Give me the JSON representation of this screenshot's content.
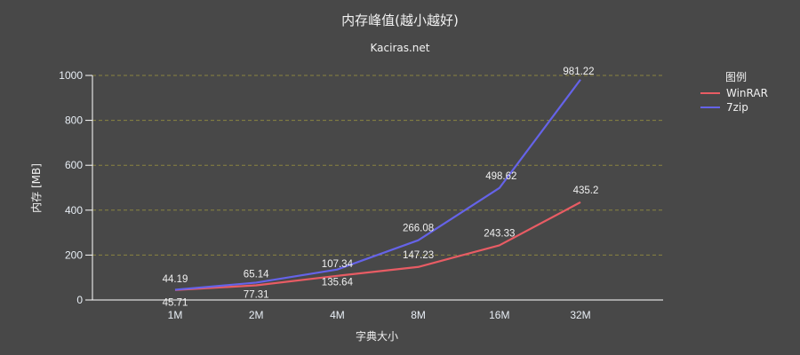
{
  "title": "内存峰值(越小越好)",
  "subtitle": "Kaciras.net",
  "legend": {
    "title": "图例",
    "items": [
      {
        "name": "WinRAR",
        "color": "#e85c64"
      },
      {
        "name": "7zip",
        "color": "#6563e8"
      }
    ]
  },
  "chart_data": {
    "type": "line",
    "title": "内存峰值(越小越好)",
    "subtitle": "Kaciras.net",
    "xlabel": "字典大小",
    "ylabel": "内存 [MB]",
    "categories": [
      "1M",
      "2M",
      "4M",
      "8M",
      "16M",
      "32M"
    ],
    "series": [
      {
        "name": "WinRAR",
        "color": "#e85c64",
        "values": [
          44.19,
          65.14,
          107.34,
          147.23,
          243.33,
          435.2
        ]
      },
      {
        "name": "7zip",
        "color": "#6563e8",
        "values": [
          45.71,
          77.31,
          135.64,
          266.08,
          498.62,
          981.22
        ]
      }
    ],
    "ylim": [
      0,
      1000
    ],
    "yticks": [
      0,
      200,
      400,
      600,
      800,
      1000
    ],
    "grid": "horizontal dashed",
    "legend_position": "right"
  }
}
